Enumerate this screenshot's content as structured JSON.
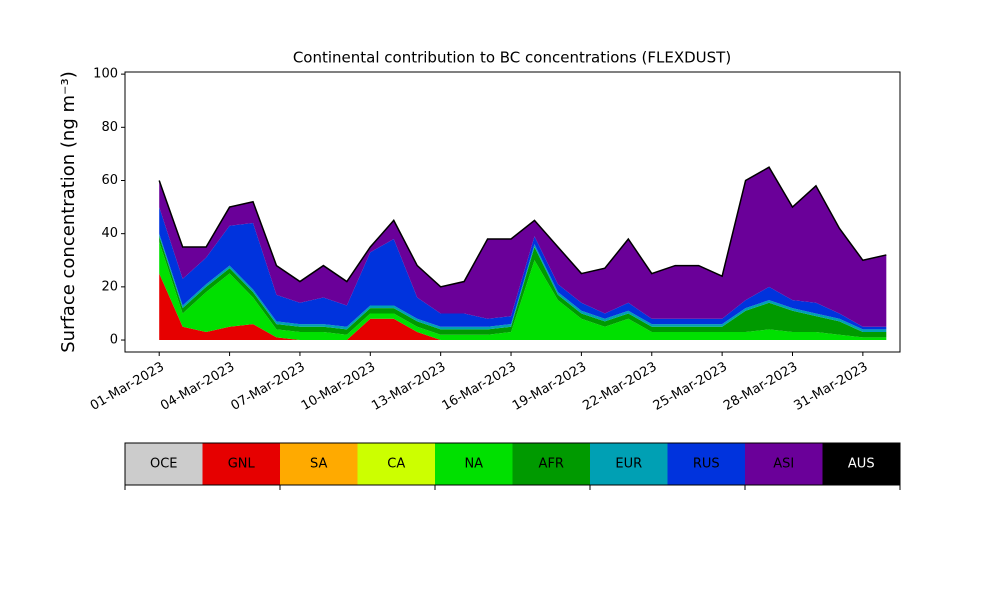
{
  "chart_data": {
    "type": "stacked_area",
    "title": "Continental contribution to BC concentrations (FLEXDUST)",
    "y_label": "Surface concentration (ng m⁻³)",
    "x": [
      "2023-03-01",
      "2023-03-02",
      "2023-03-03",
      "2023-03-04",
      "2023-03-05",
      "2023-03-06",
      "2023-03-07",
      "2023-03-08",
      "2023-03-09",
      "2023-03-10",
      "2023-03-11",
      "2023-03-12",
      "2023-03-13",
      "2023-03-14",
      "2023-03-15",
      "2023-03-16",
      "2023-03-17",
      "2023-03-18",
      "2023-03-19",
      "2023-03-20",
      "2023-03-21",
      "2023-03-22",
      "2023-03-23",
      "2023-03-24",
      "2023-03-25",
      "2023-03-26",
      "2023-03-27",
      "2023-03-28",
      "2023-03-29",
      "2023-03-30",
      "2023-03-31",
      "2023-04-01"
    ],
    "series": [
      {
        "name": "OCE",
        "color": "#cccccc",
        "values": [
          0,
          0,
          0,
          0,
          0,
          0,
          0,
          0,
          0,
          0,
          0,
          0,
          0,
          0,
          0,
          0,
          0,
          0,
          0,
          0,
          0,
          0,
          0,
          0,
          0,
          0,
          0,
          0,
          0,
          0,
          0,
          0
        ]
      },
      {
        "name": "GNL",
        "color": "#e60000",
        "values": [
          25,
          5,
          3,
          5,
          6,
          1,
          0,
          0,
          0,
          8,
          8,
          3,
          0,
          0,
          0,
          0,
          0,
          0,
          0,
          0,
          0,
          0,
          0,
          0,
          0,
          0,
          0,
          0,
          0,
          0,
          0,
          0
        ]
      },
      {
        "name": "SA",
        "color": "#ffaa00",
        "values": [
          0,
          0,
          0,
          0,
          0,
          0,
          0,
          0,
          0,
          0,
          0,
          0,
          0,
          0,
          0,
          0,
          0,
          0,
          0,
          0,
          0,
          0,
          0,
          0,
          0,
          0,
          0,
          0,
          0,
          0,
          0,
          0
        ]
      },
      {
        "name": "CA",
        "color": "#ccff00",
        "values": [
          0,
          0,
          0,
          0,
          0,
          0,
          0,
          0,
          0,
          0,
          0,
          0,
          0,
          0,
          0,
          0,
          0,
          0,
          0,
          0,
          0,
          0,
          0,
          0,
          0,
          0,
          0,
          0,
          0,
          0,
          0,
          0
        ]
      },
      {
        "name": "NA",
        "color": "#00e000",
        "values": [
          12,
          5,
          15,
          20,
          10,
          3,
          3,
          3,
          2,
          2,
          2,
          2,
          2,
          2,
          2,
          3,
          30,
          15,
          8,
          5,
          8,
          3,
          3,
          3,
          3,
          3,
          4,
          3,
          3,
          2,
          1,
          1
        ]
      },
      {
        "name": "AFR",
        "color": "#009a00",
        "values": [
          2,
          2,
          2,
          2,
          2,
          2,
          2,
          2,
          2,
          2,
          2,
          2,
          2,
          2,
          2,
          2,
          5,
          2,
          2,
          2,
          2,
          2,
          2,
          2,
          2,
          8,
          10,
          8,
          6,
          5,
          2,
          2
        ]
      },
      {
        "name": "EUR",
        "color": "#00a0b4",
        "values": [
          1,
          1,
          1,
          1,
          1,
          1,
          1,
          1,
          1,
          1,
          1,
          1,
          1,
          1,
          1,
          1,
          1,
          1,
          1,
          1,
          1,
          1,
          1,
          1,
          1,
          1,
          1,
          1,
          1,
          1,
          1,
          1
        ]
      },
      {
        "name": "RUS",
        "color": "#0033dd",
        "values": [
          10,
          10,
          10,
          15,
          25,
          10,
          8,
          10,
          8,
          20,
          25,
          8,
          5,
          5,
          3,
          3,
          3,
          3,
          3,
          2,
          3,
          2,
          2,
          2,
          2,
          3,
          5,
          3,
          4,
          2,
          1,
          1
        ]
      },
      {
        "name": "ASI",
        "color": "#6a0099",
        "values": [
          10,
          12,
          4,
          7,
          8,
          11,
          8,
          12,
          9,
          2,
          7,
          12,
          10,
          12,
          30,
          29,
          6,
          14,
          11,
          17,
          24,
          17,
          20,
          20,
          16,
          45,
          45,
          35,
          44,
          32,
          25,
          27
        ]
      },
      {
        "name": "AUS",
        "color": "#000000",
        "values": [
          0,
          0,
          0,
          0,
          0,
          0,
          0,
          0,
          0,
          0,
          0,
          0,
          0,
          0,
          0,
          0,
          0,
          0,
          0,
          0,
          0,
          0,
          0,
          0,
          0,
          0,
          0,
          0,
          0,
          0,
          0,
          0
        ]
      }
    ],
    "xlim": [
      "2023-02-27T13:00",
      "2023-04-01T14:00"
    ],
    "xticks": [
      {
        "value": "2023-03-01",
        "label": "01-Mar-2023"
      },
      {
        "value": "2023-03-04",
        "label": "04-Mar-2023"
      },
      {
        "value": "2023-03-07",
        "label": "07-Mar-2023"
      },
      {
        "value": "2023-03-10",
        "label": "10-Mar-2023"
      },
      {
        "value": "2023-03-13",
        "label": "13-Mar-2023"
      },
      {
        "value": "2023-03-16",
        "label": "16-Mar-2023"
      },
      {
        "value": "2023-03-19",
        "label": "19-Mar-2023"
      },
      {
        "value": "2023-03-22",
        "label": "22-Mar-2023"
      },
      {
        "value": "2023-03-25",
        "label": "25-Mar-2023"
      },
      {
        "value": "2023-03-28",
        "label": "28-Mar-2023"
      },
      {
        "value": "2023-03-31",
        "label": "31-Mar-2023"
      }
    ],
    "ylim": [
      -4.5,
      100.8
    ],
    "yticks": [
      0,
      20,
      40,
      60,
      80,
      100
    ]
  }
}
